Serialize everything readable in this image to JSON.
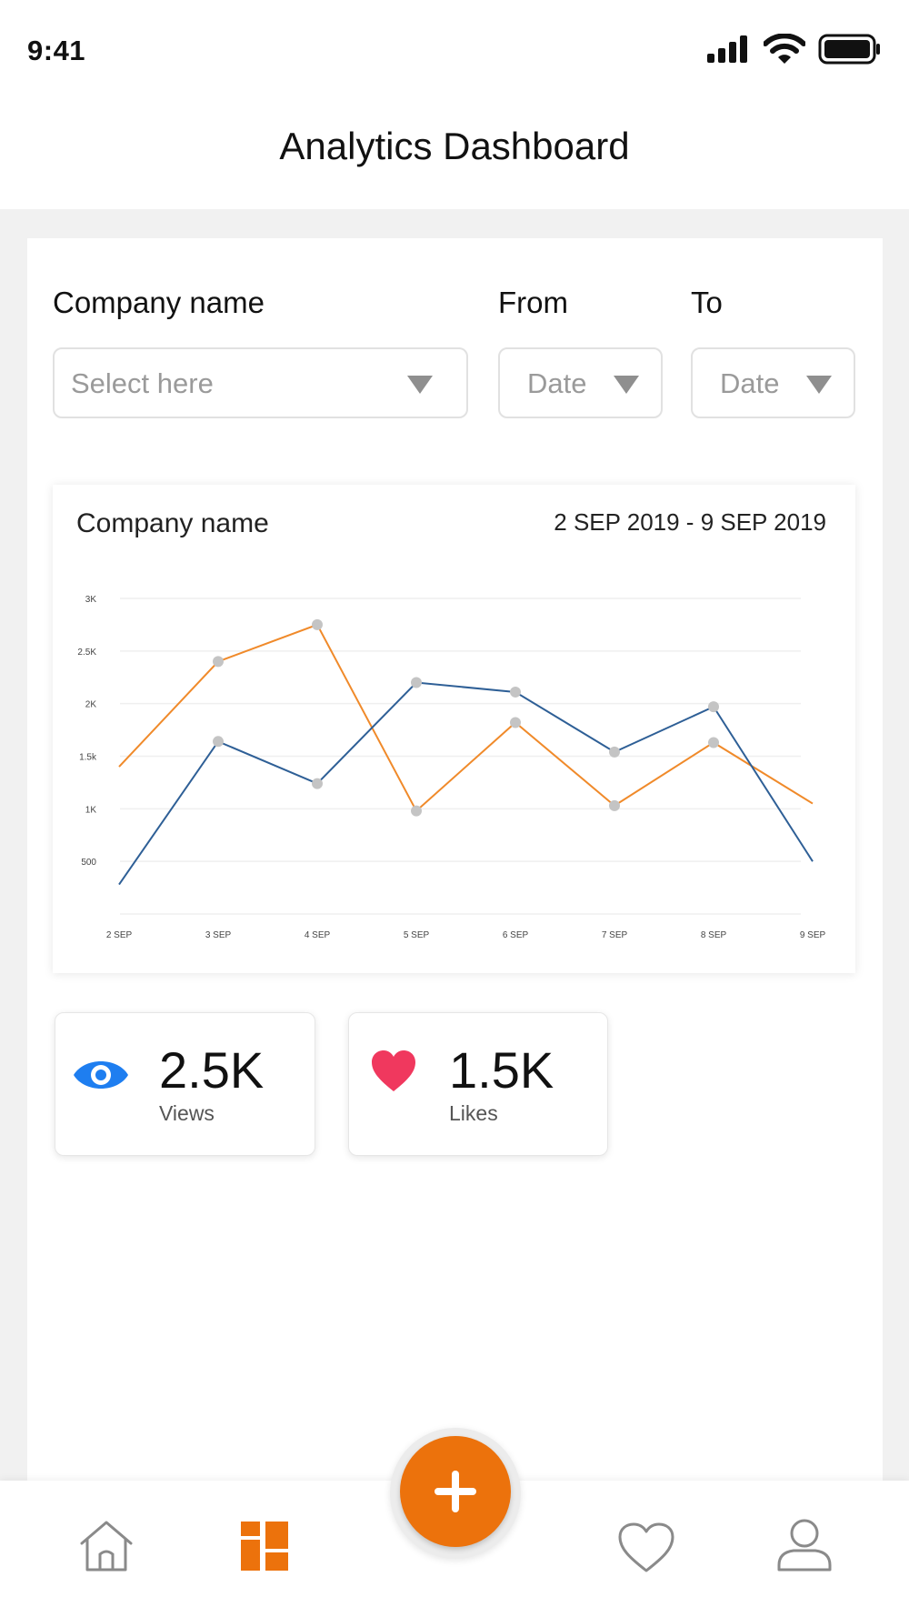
{
  "status_bar": {
    "time": "9:41"
  },
  "header": {
    "title": "Analytics Dashboard"
  },
  "filters": {
    "company": {
      "label": "Company name",
      "placeholder": "Select here"
    },
    "from": {
      "label": "From",
      "placeholder": "Date"
    },
    "to": {
      "label": "To",
      "placeholder": "Date"
    }
  },
  "chart_card": {
    "title": "Company name",
    "date_range": "2 SEP 2019 - 9 SEP 2019"
  },
  "chart_data": {
    "type": "line",
    "categories": [
      "2 SEP",
      "3 SEP",
      "4 SEP",
      "5 SEP",
      "6 SEP",
      "7 SEP",
      "8 SEP",
      "9 SEP"
    ],
    "y_tick_labels": [
      "500",
      "1K",
      "1.5k",
      "2K",
      "2.5K",
      "3K"
    ],
    "y_tick_values": [
      500,
      1000,
      1500,
      2000,
      2500,
      3000
    ],
    "ylim": [
      0,
      3000
    ],
    "grid": true,
    "series": [
      {
        "color": "#f08a2a",
        "values": [
          1400,
          2400,
          2750,
          980,
          1820,
          1030,
          1630,
          1050
        ]
      },
      {
        "color": "#2e5f96",
        "values": [
          280,
          1640,
          1240,
          2200,
          2110,
          1540,
          1970,
          500
        ]
      }
    ],
    "marker_color": "#c4c4c4"
  },
  "stats": [
    {
      "value": "2.5K",
      "label": "Views",
      "icon": "eye-icon",
      "color": "#1e7ef0"
    },
    {
      "value": "1.5K",
      "label": "Likes",
      "icon": "heart-icon",
      "color": "#f0385e"
    }
  ],
  "tab_bar": {
    "items": [
      "home-icon",
      "dashboard-icon",
      "heart-outline-icon",
      "profile-icon"
    ],
    "active": "dashboard-icon",
    "accent_color": "#ec720c",
    "inactive_color": "#8a8a8a"
  }
}
